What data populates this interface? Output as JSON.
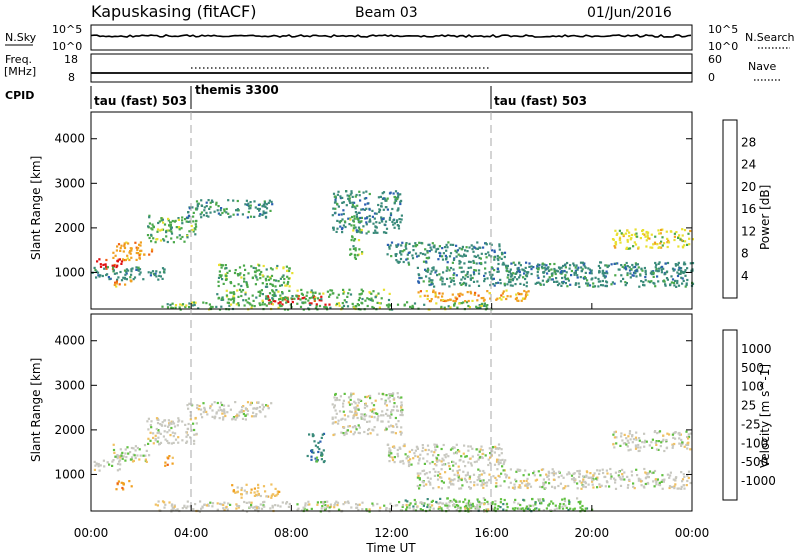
{
  "header": {
    "station": "Kapuskasing (fitACF)",
    "beam": "Beam 03",
    "date": "01/Jun/2016"
  },
  "small_panels": {
    "nsky_label": "N.Sky",
    "nsky_ticks": [
      "10^5",
      "10^0"
    ],
    "nsearch_label": "N.Search",
    "nsearch_ticks": [
      "10^5",
      "10^0"
    ],
    "freq_label_1": "Freq.",
    "freq_label_2": "[MHz]",
    "freq_ticks": [
      "18",
      "8"
    ],
    "nave_label": "Nave",
    "nave_ticks": [
      "60",
      "0"
    ],
    "cpid_label": "CPID",
    "cpid_segments": [
      {
        "label": "tau (fast) 503",
        "start_hour": 0,
        "end_hour": 4
      },
      {
        "label": "themis 3300",
        "start_hour": 4,
        "end_hour": 16
      },
      {
        "label": "tau (fast) 503",
        "start_hour": 16,
        "end_hour": 24
      }
    ]
  },
  "chart_data": [
    {
      "type": "heatmap",
      "title": "",
      "ylabel": "Slant Range [km]",
      "xlabel": "",
      "xlim": [
        0,
        24
      ],
      "ylim": [
        180,
        4600
      ],
      "y_ticks": [
        1000,
        2000,
        3000,
        4000
      ],
      "colorbar_label": "Power [dB]",
      "colorbar_ticks": [
        "4",
        "8",
        "12",
        "16",
        "20",
        "24",
        "28"
      ],
      "colorbar_colors": [
        "#1a2cf0",
        "#2a5fb0",
        "#3a8a7a",
        "#4aa84a",
        "#e8e030",
        "#f0a020",
        "#f06010",
        "#e01010"
      ],
      "scatter_regions": [
        {
          "x": [
            0.1,
            1.2
          ],
          "y": [
            1100,
            1350
          ],
          "level": 7
        },
        {
          "x": [
            0.8,
            2.4
          ],
          "y": [
            1300,
            1700
          ],
          "level": 5
        },
        {
          "x": [
            2.2,
            4.2
          ],
          "y": [
            1700,
            2300
          ],
          "level": 3
        },
        {
          "x": [
            3.8,
            7.2
          ],
          "y": [
            2250,
            2650
          ],
          "level": 2
        },
        {
          "x": [
            0.0,
            3.0
          ],
          "y": [
            850,
            1150
          ],
          "level": 2
        },
        {
          "x": [
            0.9,
            1.6
          ],
          "y": [
            700,
            880
          ],
          "level": 5
        },
        {
          "x": [
            9.6,
            12.4
          ],
          "y": [
            1900,
            2850
          ],
          "level": 2
        },
        {
          "x": [
            11.8,
            16.5
          ],
          "y": [
            1200,
            1700
          ],
          "level": 2
        },
        {
          "x": [
            13.0,
            24.0
          ],
          "y": [
            700,
            1150
          ],
          "level": 2
        },
        {
          "x": [
            16.5,
            24.0
          ],
          "y": [
            1000,
            1250
          ],
          "level": 2
        },
        {
          "x": [
            20.8,
            24.0
          ],
          "y": [
            1550,
            2000
          ],
          "level": 4
        },
        {
          "x": [
            5.0,
            8.0
          ],
          "y": [
            700,
            1200
          ],
          "level": 3
        },
        {
          "x": [
            7.0,
            9.5
          ],
          "y": [
            300,
            500
          ],
          "level": 7
        },
        {
          "x": [
            2.5,
            16.0
          ],
          "y": [
            190,
            360
          ],
          "level": 3
        },
        {
          "x": [
            13.0,
            17.5
          ],
          "y": [
            380,
            620
          ],
          "level": 5
        },
        {
          "x": [
            10.3,
            10.8
          ],
          "y": [
            1300,
            2300
          ],
          "level": 3
        },
        {
          "x": [
            5.0,
            12.0
          ],
          "y": [
            380,
            640
          ],
          "level": 3
        }
      ]
    },
    {
      "type": "heatmap",
      "title": "",
      "ylabel": "Slant Range [km]",
      "xlabel": "Time UT",
      "xlim": [
        0,
        24
      ],
      "ylim": [
        180,
        4600
      ],
      "x_ticks": [
        "00:00",
        "04:00",
        "08:00",
        "12:00",
        "16:00",
        "20:00",
        "00:00"
      ],
      "y_ticks": [
        1000,
        2000,
        3000,
        4000
      ],
      "colorbar_label": "Velocity [m s^-1]",
      "colorbar_ticks": [
        "1000",
        "500",
        "100",
        "25",
        "-25",
        "-100",
        "-500",
        "-1000"
      ],
      "colorbar_colors": [
        "#1a2cf0",
        "#2a5fb0",
        "#3a8a7a",
        "#60c040",
        "#c8c8c0",
        "#f0c060",
        "#f0a020",
        "#f06010",
        "#e01010"
      ],
      "scatter_regions": [
        {
          "x": [
            0.1,
            1.2
          ],
          "y": [
            1100,
            1350
          ],
          "level": 4
        },
        {
          "x": [
            0.8,
            2.4
          ],
          "y": [
            1300,
            1700
          ],
          "level": 4
        },
        {
          "x": [
            2.2,
            4.2
          ],
          "y": [
            1700,
            2300
          ],
          "level": 4
        },
        {
          "x": [
            3.8,
            7.2
          ],
          "y": [
            2250,
            2650
          ],
          "level": 4
        },
        {
          "x": [
            0.9,
            1.6
          ],
          "y": [
            650,
            880
          ],
          "level": 6
        },
        {
          "x": [
            2.9,
            3.3
          ],
          "y": [
            1200,
            1450
          ],
          "level": 6
        },
        {
          "x": [
            9.6,
            12.4
          ],
          "y": [
            1900,
            2850
          ],
          "level": 4
        },
        {
          "x": [
            11.8,
            16.5
          ],
          "y": [
            1200,
            1700
          ],
          "level": 4
        },
        {
          "x": [
            13.0,
            24.0
          ],
          "y": [
            700,
            1150
          ],
          "level": 4
        },
        {
          "x": [
            20.8,
            24.0
          ],
          "y": [
            1550,
            2000
          ],
          "level": 4
        },
        {
          "x": [
            8.6,
            9.3
          ],
          "y": [
            1300,
            1950
          ],
          "level": 2
        },
        {
          "x": [
            5.5,
            7.5
          ],
          "y": [
            500,
            800
          ],
          "level": 5
        },
        {
          "x": [
            12.5,
            20.0
          ],
          "y": [
            200,
            500
          ],
          "level": 3
        },
        {
          "x": [
            2.5,
            16.0
          ],
          "y": [
            190,
            420
          ],
          "level": 4
        }
      ]
    }
  ]
}
